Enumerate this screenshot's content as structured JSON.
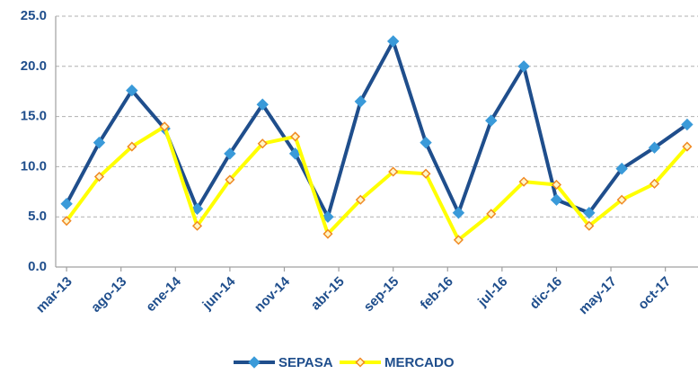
{
  "chart_data": {
    "type": "line",
    "x": [
      "2013-03",
      "2013-06",
      "2013-09",
      "2013-12",
      "2014-03",
      "2014-06",
      "2014-09",
      "2014-12",
      "2015-03",
      "2015-06",
      "2015-09",
      "2015-12",
      "2016-03",
      "2016-06",
      "2016-09",
      "2016-12",
      "2017-03",
      "2017-06",
      "2017-09",
      "2017-12"
    ],
    "series": [
      {
        "name": "SEPASA",
        "color": "#1f4e8c",
        "marker_color": "#3a9ad9",
        "values": [
          6.3,
          12.4,
          17.6,
          13.8,
          5.8,
          11.3,
          16.2,
          11.3,
          5.0,
          16.5,
          22.5,
          12.4,
          5.4,
          14.6,
          20.0,
          6.7,
          5.4,
          9.8,
          11.9,
          14.2
        ]
      },
      {
        "name": "MERCADO",
        "color": "#ffff00",
        "marker_color": "#f08a24",
        "values": [
          4.6,
          9.0,
          12.0,
          14.0,
          4.1,
          8.7,
          12.3,
          13.0,
          3.3,
          6.7,
          9.5,
          9.3,
          2.7,
          5.3,
          8.5,
          8.2,
          4.1,
          6.7,
          8.3,
          12.0
        ]
      }
    ],
    "xlim": [
      "2013-02",
      "2018-01"
    ],
    "xticks": [
      {
        "value": "2013-03",
        "label": "mar-13"
      },
      {
        "value": "2013-08",
        "label": "ago-13"
      },
      {
        "value": "2014-01",
        "label": "ene-14"
      },
      {
        "value": "2014-06",
        "label": "jun-14"
      },
      {
        "value": "2014-11",
        "label": "nov-14"
      },
      {
        "value": "2015-04",
        "label": "abr-15"
      },
      {
        "value": "2015-09",
        "label": "sep-15"
      },
      {
        "value": "2016-02",
        "label": "feb-16"
      },
      {
        "value": "2016-07",
        "label": "jul-16"
      },
      {
        "value": "2016-12",
        "label": "dic-16"
      },
      {
        "value": "2017-05",
        "label": "may-17"
      },
      {
        "value": "2017-10",
        "label": "oct-17"
      }
    ],
    "ylim": [
      0,
      25
    ],
    "yticks": [
      {
        "value": 0,
        "label": "0.0"
      },
      {
        "value": 5,
        "label": "5.0"
      },
      {
        "value": 10,
        "label": "10.0"
      },
      {
        "value": 15,
        "label": "15.0"
      },
      {
        "value": 20,
        "label": "20.0"
      },
      {
        "value": 25,
        "label": "25.0"
      }
    ],
    "grid": true,
    "legend": "bottom"
  }
}
